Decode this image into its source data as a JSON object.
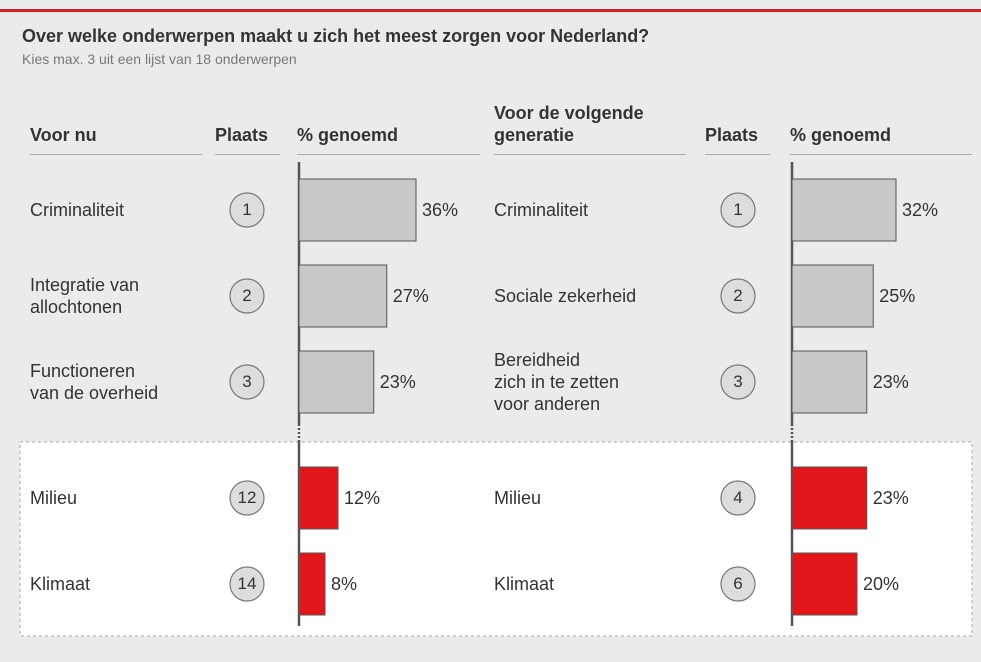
{
  "chart_data": {
    "type": "bar",
    "title": "Over welke onderwerpen maakt u zich het meest zorgen voor Nederland?",
    "subtitle": "Kies max. 3 uit een lijst van 18 onderwerpen",
    "panels": [
      {
        "header_topic": "Voor nu",
        "header_rank": "Plaats",
        "header_value": "% genoemd",
        "categories": [
          "Criminaliteit",
          "Integratie van\nallochtonen",
          "Functioneren\nvan de overheid",
          "Milieu",
          "Klimaat"
        ],
        "ranks": [
          1,
          2,
          3,
          12,
          14
        ],
        "values": [
          36,
          27,
          23,
          12,
          8
        ],
        "value_labels": [
          "36%",
          "27%",
          "23%",
          "12%",
          "8%"
        ],
        "colors": [
          "#c8c8c8",
          "#c8c8c8",
          "#c8c8c8",
          "#e3171b",
          "#e3171b"
        ]
      },
      {
        "header_topic": "Voor de volgende\ngeneratie",
        "header_rank": "Plaats",
        "header_value": "% genoemd",
        "categories": [
          "Criminaliteit",
          "Sociale zekerheid",
          "Bereidheid\nzich in te zetten\nvoor anderen",
          "Milieu",
          "Klimaat"
        ],
        "ranks": [
          1,
          2,
          3,
          4,
          6
        ],
        "values": [
          32,
          25,
          23,
          23,
          20
        ],
        "value_labels": [
          "32%",
          "25%",
          "23%",
          "23%",
          "20%"
        ],
        "colors": [
          "#c8c8c8",
          "#c8c8c8",
          "#c8c8c8",
          "#e3171b",
          "#e3171b"
        ]
      }
    ]
  }
}
